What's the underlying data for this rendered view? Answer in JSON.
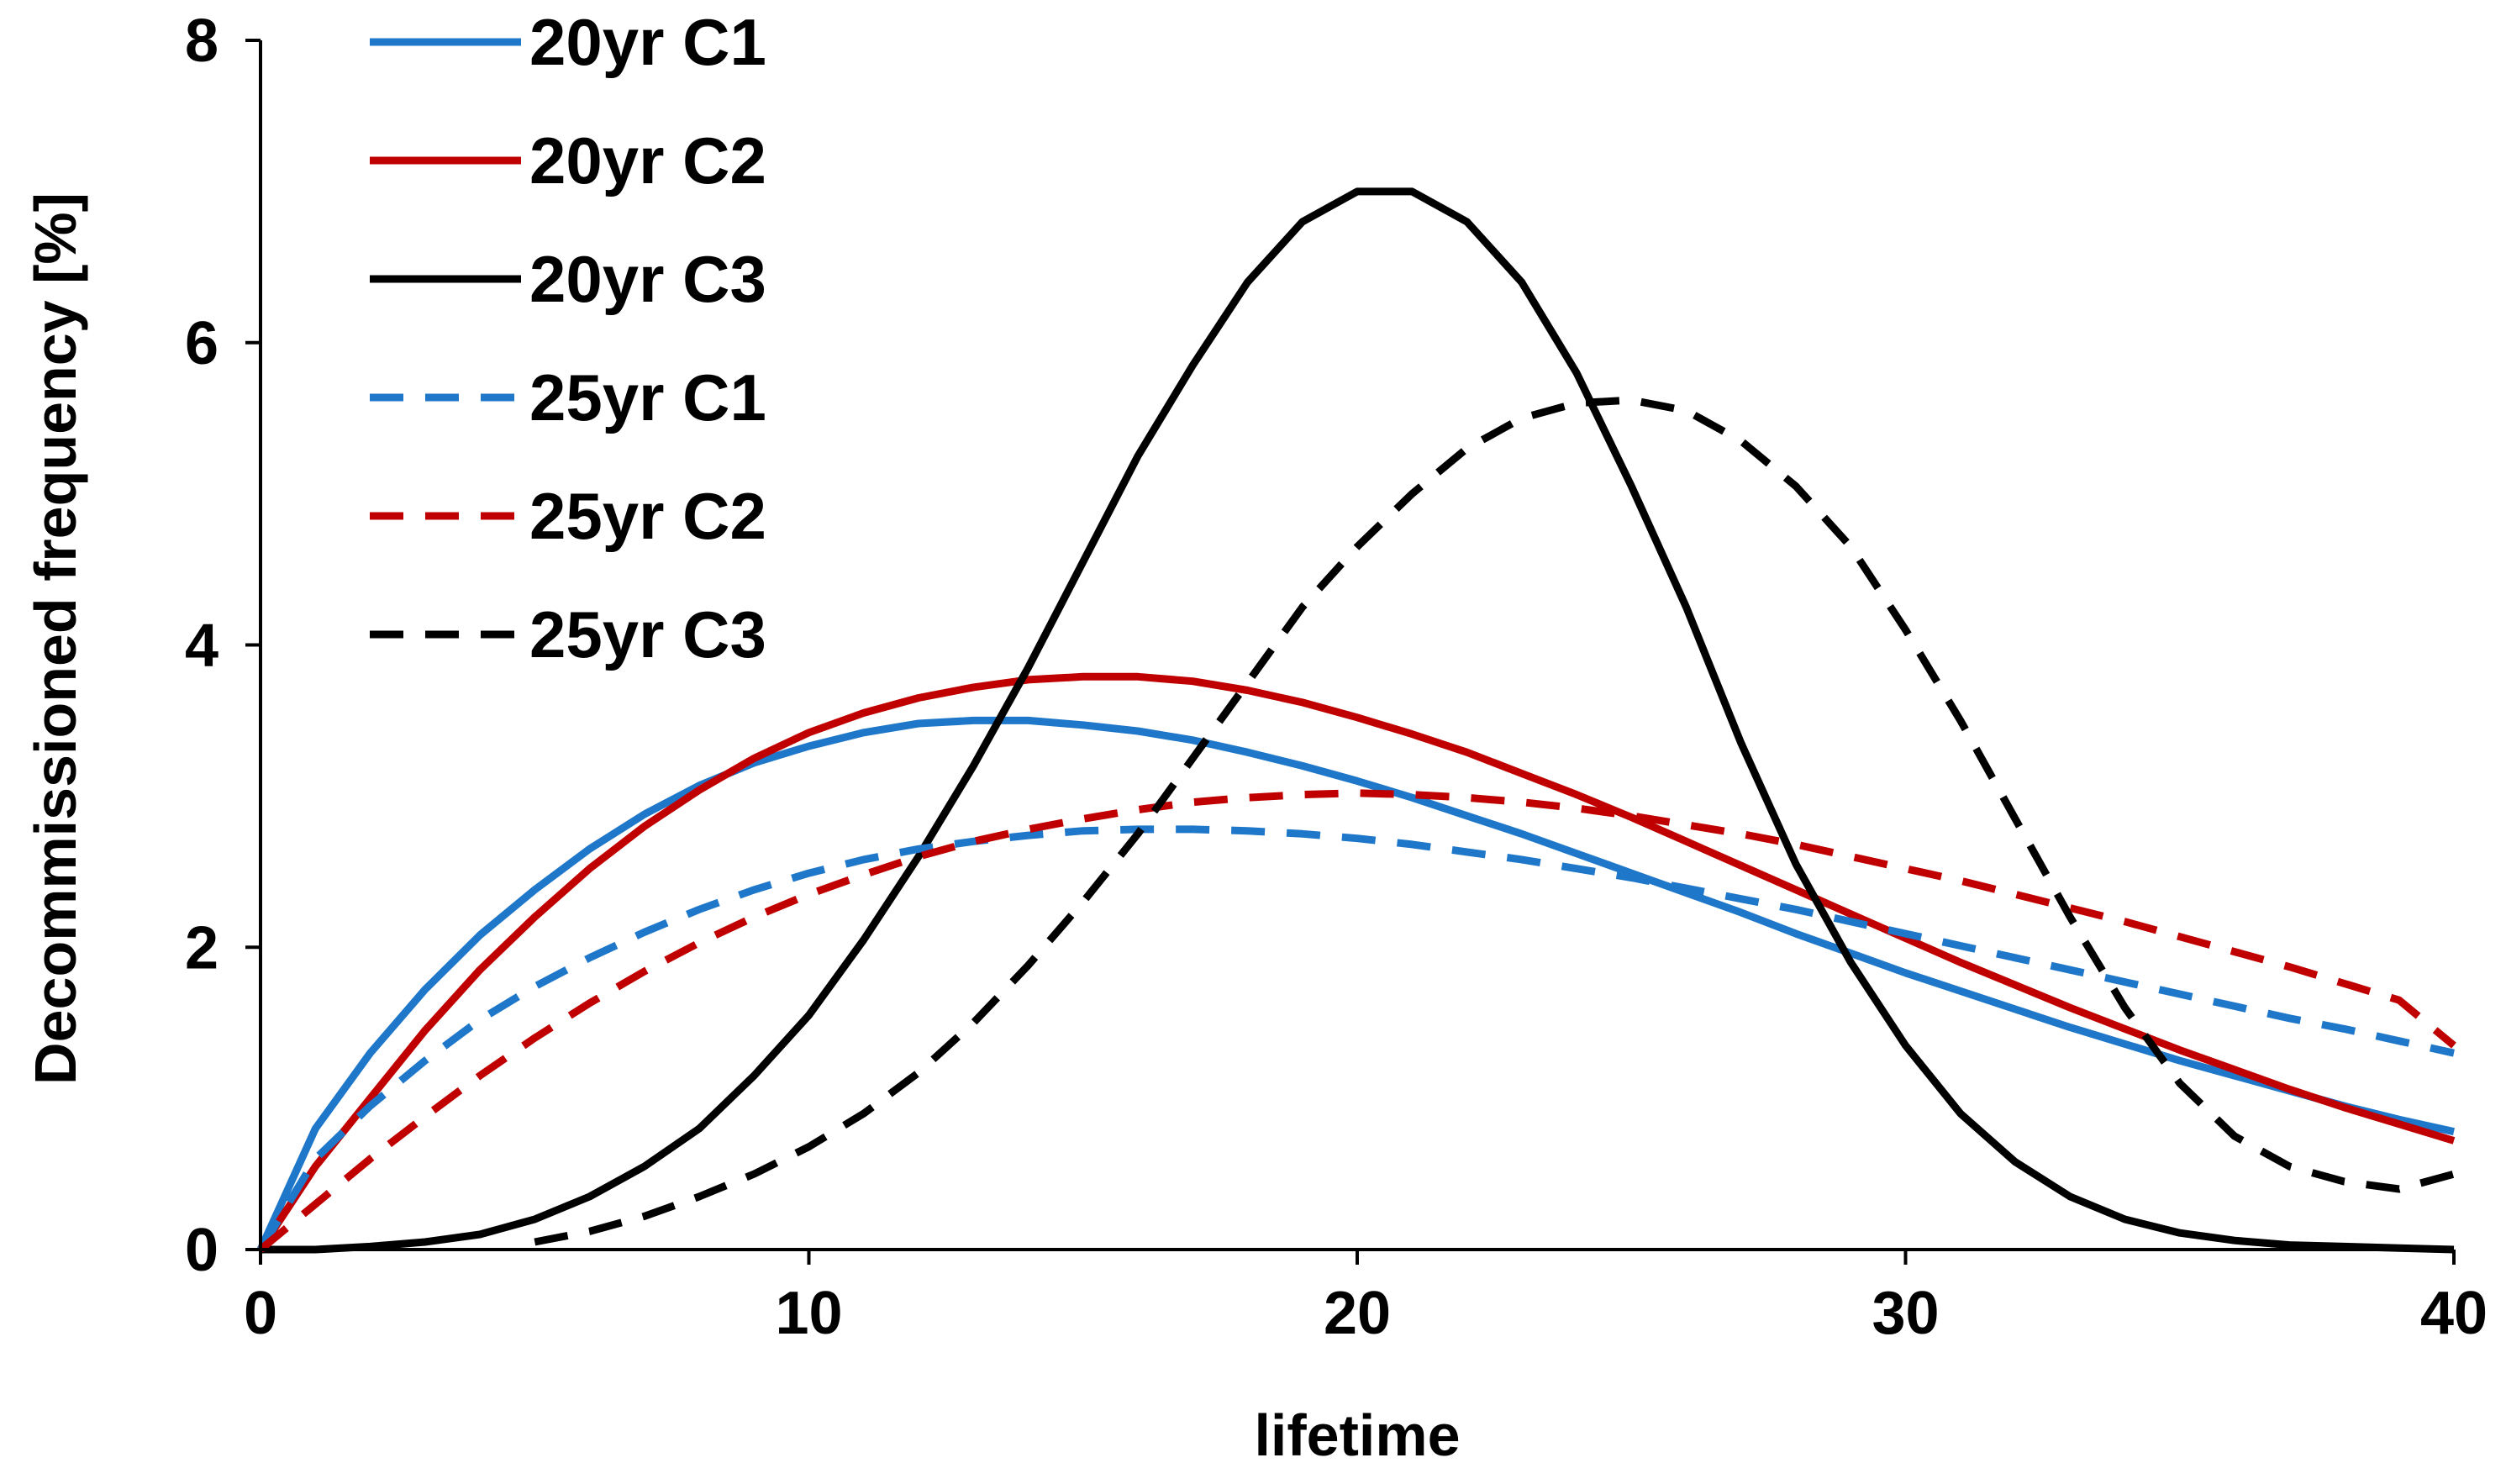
{
  "chart_data": {
    "type": "line",
    "title": "",
    "xlabel": "lifetime",
    "ylabel": "Decommissioned frequency [%]",
    "xlim": [
      0,
      40
    ],
    "ylim": [
      0,
      8
    ],
    "xticks": [
      0,
      10,
      20,
      30,
      40
    ],
    "yticks": [
      0,
      2,
      4,
      6,
      8
    ],
    "grid": false,
    "legend_position": "top-left",
    "series": [
      {
        "name": "20yr C1",
        "color": "#1f77c9",
        "dash": "solid",
        "x": [
          0,
          1,
          2,
          3,
          4,
          5,
          6,
          7,
          8,
          9,
          10,
          11,
          12,
          13,
          14,
          15,
          16,
          17,
          18,
          19,
          20,
          21,
          22,
          23,
          24,
          25,
          26,
          27,
          28,
          29,
          30,
          31,
          32,
          33,
          34,
          35,
          36,
          37,
          38,
          39,
          40
        ],
        "y": [
          0,
          0.8,
          1.3,
          1.72,
          2.08,
          2.38,
          2.65,
          2.88,
          3.07,
          3.22,
          3.33,
          3.42,
          3.48,
          3.5,
          3.5,
          3.47,
          3.43,
          3.37,
          3.29,
          3.2,
          3.1,
          2.99,
          2.87,
          2.75,
          2.62,
          2.49,
          2.36,
          2.23,
          2.09,
          1.96,
          1.83,
          1.71,
          1.59,
          1.47,
          1.36,
          1.25,
          1.15,
          1.05,
          0.95,
          0.86,
          0.78
        ]
      },
      {
        "name": "20yr C2",
        "color": "#c00000",
        "dash": "solid",
        "x": [
          0,
          1,
          2,
          3,
          4,
          5,
          6,
          7,
          8,
          9,
          10,
          11,
          12,
          13,
          14,
          15,
          16,
          17,
          18,
          19,
          20,
          21,
          22,
          23,
          24,
          25,
          26,
          27,
          28,
          29,
          30,
          31,
          32,
          33,
          34,
          35,
          36,
          37,
          38,
          39,
          40
        ],
        "y": [
          0,
          0.55,
          1.0,
          1.45,
          1.85,
          2.2,
          2.52,
          2.8,
          3.04,
          3.25,
          3.42,
          3.55,
          3.65,
          3.72,
          3.77,
          3.79,
          3.79,
          3.76,
          3.7,
          3.62,
          3.52,
          3.41,
          3.29,
          3.15,
          3.01,
          2.86,
          2.7,
          2.54,
          2.38,
          2.22,
          2.06,
          1.9,
          1.75,
          1.6,
          1.46,
          1.32,
          1.19,
          1.06,
          0.94,
          0.83,
          0.72
        ]
      },
      {
        "name": "20yr C3",
        "color": "#000000",
        "dash": "solid",
        "x": [
          0,
          1,
          2,
          3,
          4,
          5,
          6,
          7,
          8,
          9,
          10,
          11,
          12,
          13,
          14,
          15,
          16,
          17,
          18,
          19,
          20,
          21,
          22,
          23,
          24,
          25,
          26,
          27,
          28,
          29,
          30,
          31,
          32,
          33,
          34,
          35,
          36,
          37,
          38,
          39,
          40
        ],
        "y": [
          0,
          0,
          0.02,
          0.05,
          0.1,
          0.2,
          0.35,
          0.55,
          0.8,
          1.15,
          1.55,
          2.05,
          2.6,
          3.2,
          3.85,
          4.55,
          5.25,
          5.85,
          6.4,
          6.8,
          7.0,
          7.0,
          6.8,
          6.4,
          5.8,
          5.05,
          4.25,
          3.35,
          2.55,
          1.9,
          1.35,
          0.9,
          0.58,
          0.35,
          0.2,
          0.11,
          0.06,
          0.03,
          0.02,
          0.01,
          0
        ]
      },
      {
        "name": "25yr C1",
        "color": "#1f77c9",
        "dash": "dashed",
        "x": [
          0,
          1,
          2,
          3,
          4,
          5,
          6,
          7,
          8,
          9,
          10,
          11,
          12,
          13,
          14,
          15,
          16,
          17,
          18,
          19,
          20,
          21,
          22,
          23,
          24,
          25,
          26,
          27,
          28,
          29,
          30,
          31,
          32,
          33,
          34,
          35,
          36,
          37,
          38,
          39,
          40
        ],
        "y": [
          0,
          0.6,
          0.95,
          1.25,
          1.52,
          1.74,
          1.93,
          2.1,
          2.25,
          2.38,
          2.49,
          2.58,
          2.65,
          2.7,
          2.74,
          2.77,
          2.78,
          2.78,
          2.77,
          2.75,
          2.72,
          2.68,
          2.63,
          2.58,
          2.52,
          2.46,
          2.39,
          2.32,
          2.25,
          2.17,
          2.09,
          2.01,
          1.93,
          1.85,
          1.77,
          1.69,
          1.61,
          1.53,
          1.46,
          1.38,
          1.3
        ]
      },
      {
        "name": "25yr C2",
        "color": "#c00000",
        "dash": "dashed",
        "x": [
          0,
          1,
          2,
          3,
          4,
          5,
          6,
          7,
          8,
          9,
          10,
          11,
          12,
          13,
          14,
          15,
          16,
          17,
          18,
          19,
          20,
          21,
          22,
          23,
          24,
          25,
          26,
          27,
          28,
          29,
          30,
          31,
          32,
          33,
          34,
          35,
          36,
          37,
          38,
          39,
          40
        ],
        "y": [
          0,
          0.3,
          0.6,
          0.88,
          1.15,
          1.4,
          1.63,
          1.84,
          2.03,
          2.2,
          2.35,
          2.48,
          2.6,
          2.7,
          2.78,
          2.85,
          2.91,
          2.96,
          2.99,
          3.01,
          3.02,
          3.01,
          2.99,
          2.96,
          2.92,
          2.87,
          2.81,
          2.75,
          2.68,
          2.6,
          2.52,
          2.44,
          2.35,
          2.26,
          2.17,
          2.07,
          1.97,
          1.87,
          1.76,
          1.65,
          1.35
        ]
      },
      {
        "name": "25yr C3",
        "color": "#000000",
        "dash": "dashed",
        "x": [
          5,
          6,
          7,
          8,
          9,
          10,
          11,
          12,
          13,
          14,
          15,
          16,
          17,
          18,
          19,
          20,
          21,
          22,
          23,
          24,
          25,
          26,
          27,
          28,
          29,
          30,
          31,
          32,
          33,
          34,
          35,
          36,
          37,
          38,
          39,
          40
        ],
        "y": [
          0.05,
          0.12,
          0.22,
          0.35,
          0.5,
          0.68,
          0.9,
          1.17,
          1.5,
          1.88,
          2.3,
          2.75,
          3.25,
          3.75,
          4.25,
          4.65,
          5.0,
          5.3,
          5.5,
          5.6,
          5.62,
          5.55,
          5.35,
          5.05,
          4.65,
          4.1,
          3.5,
          2.85,
          2.2,
          1.6,
          1.1,
          0.75,
          0.55,
          0.45,
          0.4,
          0.5
        ]
      }
    ]
  }
}
